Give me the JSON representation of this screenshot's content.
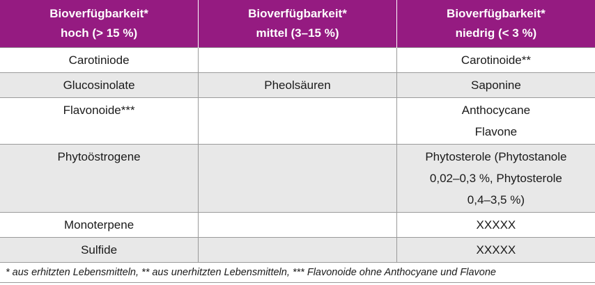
{
  "table": {
    "header": [
      [
        "Bioverfügbarkeit*",
        "hoch (> 15 %)"
      ],
      [
        "Bioverfügbarkeit*",
        "mittel (3–15 %)"
      ],
      [
        "Bioverfügbarkeit*",
        "niedrig (< 3 %)"
      ]
    ],
    "rows": [
      [
        [
          "Carotiniode"
        ],
        null,
        [
          "Carotinoide**"
        ]
      ],
      [
        [
          "Glucosinolate"
        ],
        [
          "Pheolsäuren"
        ],
        [
          "Saponine"
        ]
      ],
      [
        [
          "Flavonoide***"
        ],
        null,
        [
          "Anthocycane",
          "Flavone"
        ]
      ],
      [
        [
          "Phytoöstrogene"
        ],
        null,
        [
          "Phytosterole (Phytostanole",
          "0,02–0,3 %, Phytosterole",
          "0,4–3,5 %)"
        ]
      ],
      [
        [
          "Monoterpene"
        ],
        null,
        [
          "XXXXX"
        ]
      ],
      [
        [
          "Sulfide"
        ],
        null,
        [
          "XXXXX"
        ]
      ]
    ],
    "footnote": "* aus erhitzten Lebensmitteln, ** aus unerhitzten Lebensmitteln, *** Flavonoide ohne Anthocyane und Flavone"
  }
}
